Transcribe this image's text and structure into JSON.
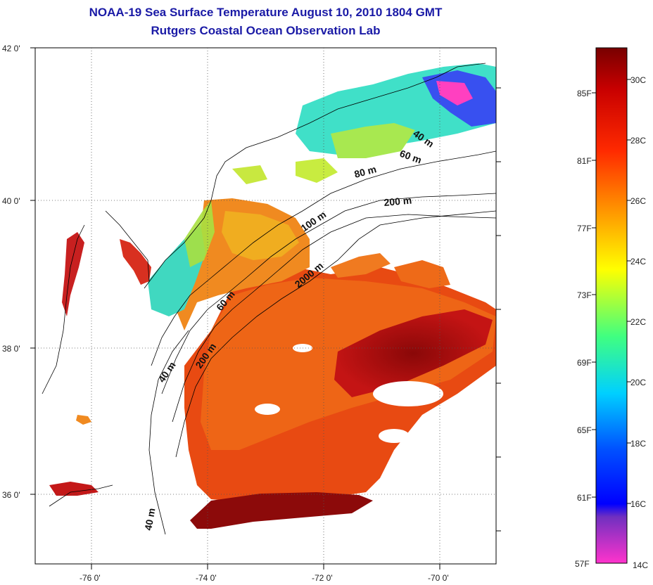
{
  "title_line1": "NOAA-19 Sea Surface Temperature August 10, 2010 1804 GMT",
  "title_line2": "Rutgers Coastal Ocean Observation Lab",
  "lat_labels": [
    "42 0'",
    "40 0'",
    "38 0'",
    "36 0'"
  ],
  "lon_labels": [
    "-76 0'",
    "-74 0'",
    "-72 0'",
    "-70 0'"
  ],
  "colorbar": {
    "fahrenheit_labels": [
      "85F",
      "81F",
      "77F",
      "73F",
      "69F",
      "65F",
      "61F",
      "57F"
    ],
    "celsius_labels": [
      "30C",
      "28C",
      "26C",
      "24C",
      "22C",
      "20C",
      "18C",
      "16C",
      "14C"
    ],
    "colors": [
      "#ff33cc",
      "#7030c0",
      "#0000ff",
      "#00c8ff",
      "#40ff80",
      "#ffff00",
      "#ff9900",
      "#ff2200",
      "#c00000",
      "#7a0000"
    ]
  },
  "contour_labels": [
    "40 m",
    "60 m",
    "80 m",
    "200 m",
    "100 m",
    "2000 m",
    "60 m",
    "40 m",
    "200 m",
    "40 m"
  ],
  "colors": {
    "title": "#1a1aa6",
    "land": "#ffffff",
    "warm": "#e83a10",
    "hot": "#9a0a0a",
    "orange": "#f07820",
    "yellow": "#f0d020",
    "green": "#9ae050",
    "cyan": "#40d8e0",
    "blue": "#3040e0",
    "magenta": "#ff40c0"
  }
}
